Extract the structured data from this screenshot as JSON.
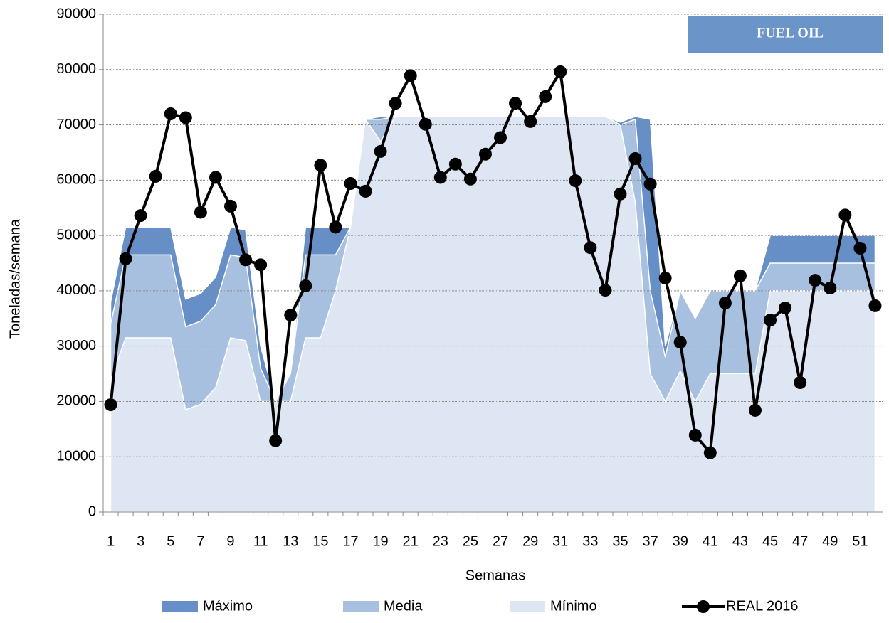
{
  "chart_data": {
    "type": "area_line",
    "annotation": "FUEL OIL",
    "x_label": "Semanas",
    "y_label": "Toneladas/semana",
    "categories": [
      1,
      null,
      3,
      null,
      5,
      null,
      7,
      null,
      9,
      null,
      11,
      null,
      13,
      null,
      15,
      null,
      17,
      null,
      19,
      null,
      21,
      null,
      23,
      null,
      25,
      null,
      27,
      null,
      29,
      null,
      31,
      null,
      33,
      null,
      35,
      null,
      37,
      null,
      39,
      null,
      41,
      null,
      43,
      null,
      45,
      null,
      47,
      null,
      49,
      null,
      51,
      null
    ],
    "ylim": [
      0,
      90000
    ],
    "yticks": [
      0,
      10000,
      20000,
      30000,
      40000,
      50000,
      60000,
      70000,
      80000,
      90000
    ],
    "grid": true,
    "legend": "bottom",
    "series": [
      {
        "name": "Máximo",
        "type": "area",
        "color": "#658fc6",
        "values": [
          38000,
          51500,
          51500,
          51500,
          51500,
          38500,
          39500,
          42500,
          51500,
          51000,
          30000,
          20000,
          25000,
          51500,
          51500,
          51500,
          51500,
          71000,
          71500,
          71500,
          71500,
          71500,
          71500,
          71500,
          71500,
          71500,
          71500,
          71500,
          71500,
          71500,
          71500,
          71500,
          71500,
          71500,
          70500,
          71500,
          71000,
          30000,
          40000,
          35000,
          40000,
          40000,
          40000,
          40000,
          50000,
          50000,
          50000,
          50000,
          50000,
          50000,
          50000,
          50000
        ]
      },
      {
        "name": "Media",
        "type": "area",
        "color": "#a8c0e0",
        "values": [
          34000,
          46500,
          46500,
          46500,
          46500,
          33500,
          34500,
          37500,
          46500,
          46000,
          26000,
          20000,
          25000,
          46500,
          46500,
          46500,
          51500,
          71000,
          71000,
          71500,
          71500,
          71500,
          71500,
          71500,
          71500,
          71500,
          71500,
          71500,
          71500,
          71500,
          71500,
          71500,
          71500,
          71500,
          70000,
          71000,
          40000,
          28000,
          40000,
          35000,
          40000,
          40000,
          40000,
          40000,
          45000,
          45000,
          45000,
          45000,
          45000,
          45000,
          45000,
          45000
        ]
      },
      {
        "name": "Mínimo",
        "type": "area",
        "color": "#dde6f2",
        "values": [
          24000,
          31500,
          31500,
          31500,
          31500,
          18500,
          19500,
          22500,
          31500,
          31000,
          20000,
          20000,
          20000,
          31500,
          31500,
          40000,
          51500,
          71000,
          67000,
          71500,
          71500,
          71500,
          71500,
          71500,
          71500,
          71500,
          71500,
          71500,
          71500,
          71500,
          71500,
          71500,
          71500,
          71500,
          70000,
          56000,
          25000,
          20000,
          25500,
          20000,
          25000,
          25000,
          25000,
          25000,
          40000,
          40000,
          40000,
          40000,
          40000,
          40000,
          40000,
          40000
        ]
      },
      {
        "name": "REAL 2016",
        "type": "line",
        "color": "#000000",
        "values": [
          19400,
          45800,
          53600,
          60700,
          72000,
          71300,
          54200,
          60500,
          55300,
          45600,
          44700,
          12900,
          35600,
          40900,
          62700,
          51500,
          59400,
          58000,
          65200,
          73900,
          78900,
          70100,
          60500,
          62900,
          60200,
          64700,
          67700,
          73900,
          70600,
          75100,
          79600,
          59900,
          47800,
          40100,
          57500,
          63900,
          59300,
          42300,
          30700,
          13900,
          10700,
          37800,
          42700,
          18400,
          34700,
          36900,
          23400,
          41900,
          40500,
          53700,
          47700,
          37300
        ]
      }
    ]
  }
}
